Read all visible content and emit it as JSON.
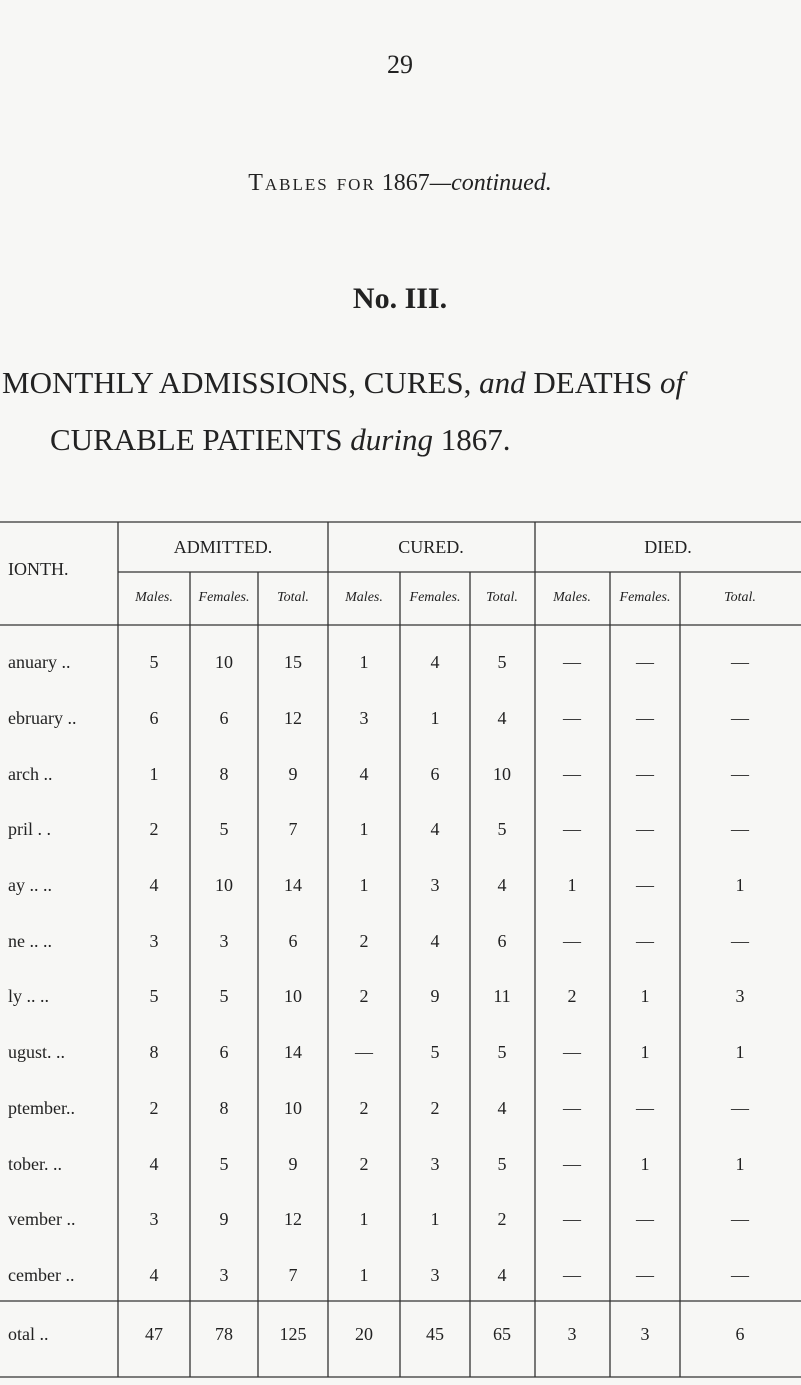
{
  "page_number": "29",
  "header": {
    "title_caps": "Tables for",
    "title_year": "1867",
    "title_cont": "—continued.",
    "number": "No. III.",
    "heading_line1_a": "MONTHLY ADMISSIONS, CURES,",
    "heading_line1_and": "and",
    "heading_line1_b": "DEATHS",
    "heading_line1_of": "of",
    "heading_line2_a": "CURABLE PATIENTS",
    "heading_line2_during": "during",
    "heading_line2_b": "1867."
  },
  "table": {
    "month_header": "IONTH.",
    "groups": [
      "ADMITTED.",
      "CURED.",
      "DIED."
    ],
    "subheaders": [
      "Males.",
      "Females.",
      "Total.",
      "Males.",
      "Females.",
      "Total.",
      "Males.",
      "Females.",
      "Total."
    ],
    "rows": [
      [
        "anuary ..",
        5,
        10,
        15,
        1,
        4,
        5,
        "—",
        "—",
        "—"
      ],
      [
        "ebruary ..",
        6,
        6,
        12,
        3,
        1,
        4,
        "—",
        "—",
        "—"
      ],
      [
        "arch ..",
        1,
        8,
        9,
        4,
        6,
        10,
        "—",
        "—",
        "—"
      ],
      [
        "pril . .",
        2,
        5,
        7,
        1,
        4,
        5,
        "—",
        "—",
        "—"
      ],
      [
        "ay .. ..",
        4,
        10,
        14,
        1,
        3,
        4,
        1,
        "—",
        1
      ],
      [
        "ne .. ..",
        3,
        3,
        6,
        2,
        4,
        6,
        "—",
        "—",
        "—"
      ],
      [
        "ly .. ..",
        5,
        5,
        10,
        2,
        9,
        11,
        2,
        1,
        3
      ],
      [
        "ugust. ..",
        8,
        6,
        14,
        "—",
        5,
        5,
        "—",
        1,
        1
      ],
      [
        "ptember..",
        2,
        8,
        10,
        2,
        2,
        4,
        "—",
        "—",
        "—"
      ],
      [
        "tober. ..",
        4,
        5,
        9,
        2,
        3,
        5,
        "—",
        1,
        1
      ],
      [
        "vember ..",
        3,
        9,
        12,
        1,
        1,
        2,
        "—",
        "—",
        "—"
      ],
      [
        "cember ..",
        4,
        3,
        7,
        1,
        3,
        4,
        "—",
        "—",
        "—"
      ]
    ],
    "total": [
      "otal ..",
      47,
      78,
      125,
      20,
      45,
      65,
      3,
      3,
      6
    ]
  }
}
